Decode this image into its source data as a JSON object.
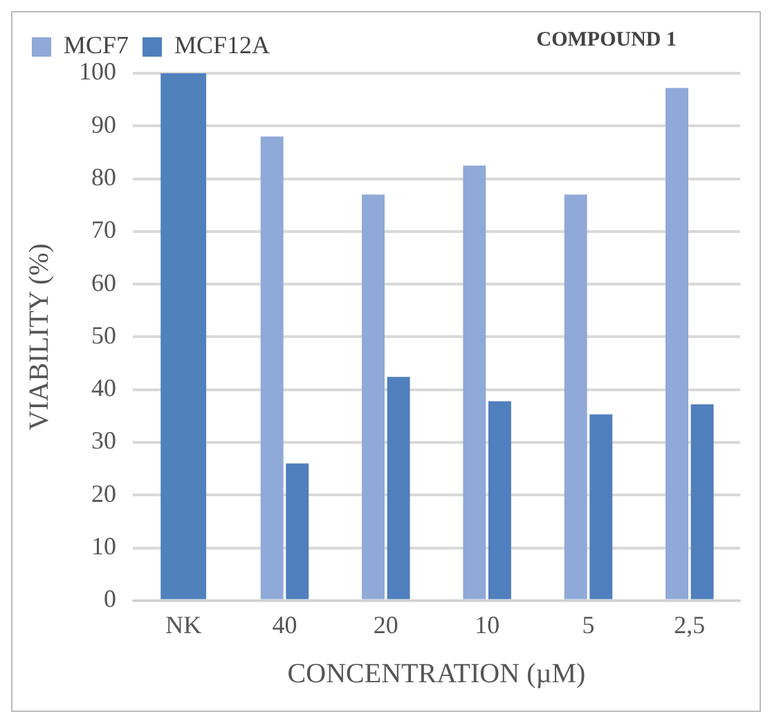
{
  "chart_data": {
    "type": "bar",
    "title": "COMPOUND 1",
    "xlabel": "CONCENTRATION (µM)",
    "ylabel": "VIABILITY (%)",
    "categories": [
      "NK",
      "40",
      "20",
      "10",
      "5",
      "2,5"
    ],
    "series": [
      {
        "name": "MCF7",
        "color": "#8fa9d8",
        "colors": [
          "#4f81bd",
          "#8fa9d8",
          "#8fa9d8",
          "#8fa9d8",
          "#8fa9d8",
          "#8fa9d8"
        ],
        "values": [
          100,
          88,
          77,
          82.5,
          77,
          97.2
        ]
      },
      {
        "name": "MCF12A",
        "color": "#4f7fbd",
        "values": [
          null,
          26,
          42.4,
          37.8,
          35.3,
          37.2
        ]
      }
    ],
    "ylim": [
      0,
      100
    ],
    "yticks": [
      0,
      10,
      20,
      30,
      40,
      50,
      60,
      70,
      80,
      90,
      100
    ],
    "grid": "y",
    "legend": "top left"
  }
}
